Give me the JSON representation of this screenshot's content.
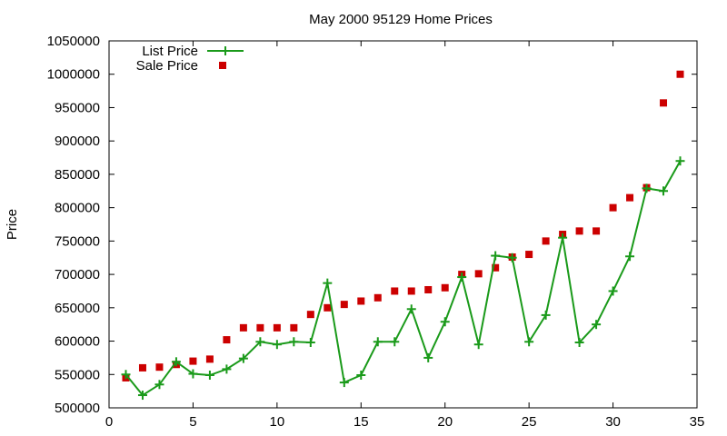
{
  "chart_data": {
    "type": "line",
    "title": "May 2000 95129 Home Prices",
    "xlabel": "",
    "ylabel": "Price",
    "xlim": [
      0,
      35
    ],
    "ylim": [
      500000,
      1050000
    ],
    "x_ticks": [
      "0",
      "5",
      "10",
      "15",
      "20",
      "25",
      "30",
      "35"
    ],
    "y_ticks": [
      "500000",
      "550000",
      "600000",
      "650000",
      "700000",
      "750000",
      "800000",
      "850000",
      "900000",
      "950000",
      "1000000",
      "1050000"
    ],
    "grid": false,
    "legend_position": "top-left",
    "series": [
      {
        "name": "List Price",
        "style": "line+points",
        "marker": "plus",
        "color": "#1a9a1a",
        "x": [
          1,
          2,
          3,
          4,
          5,
          6,
          7,
          8,
          9,
          10,
          11,
          12,
          13,
          14,
          15,
          16,
          17,
          18,
          19,
          20,
          21,
          22,
          23,
          24,
          25,
          26,
          27,
          28,
          29,
          30,
          31,
          32,
          33,
          34
        ],
        "values": [
          550000,
          519000,
          535000,
          569000,
          551000,
          549000,
          558000,
          574000,
          599000,
          595000,
          599000,
          598000,
          687000,
          538000,
          549000,
          599000,
          599000,
          648000,
          575000,
          629000,
          696000,
          595000,
          728000,
          725000,
          599000,
          639000,
          755000,
          598000,
          625000,
          675000,
          727000,
          829000,
          825000,
          870000
        ]
      },
      {
        "name": "Sale Price",
        "style": "points",
        "marker": "square",
        "color": "#cc0000",
        "x": [
          1,
          2,
          3,
          4,
          5,
          6,
          7,
          8,
          9,
          10,
          11,
          12,
          13,
          14,
          15,
          16,
          17,
          18,
          19,
          20,
          21,
          22,
          23,
          24,
          25,
          26,
          27,
          28,
          29,
          30,
          31,
          32,
          33,
          34
        ],
        "values": [
          545000,
          560000,
          561000,
          565000,
          570000,
          573000,
          602000,
          620000,
          620000,
          620000,
          620000,
          640000,
          650000,
          655000,
          660000,
          665000,
          675000,
          675000,
          677000,
          680000,
          700000,
          701000,
          710000,
          726000,
          730000,
          750000,
          760000,
          765000,
          765000,
          800000,
          815000,
          830000,
          957000,
          1000000
        ]
      }
    ]
  }
}
